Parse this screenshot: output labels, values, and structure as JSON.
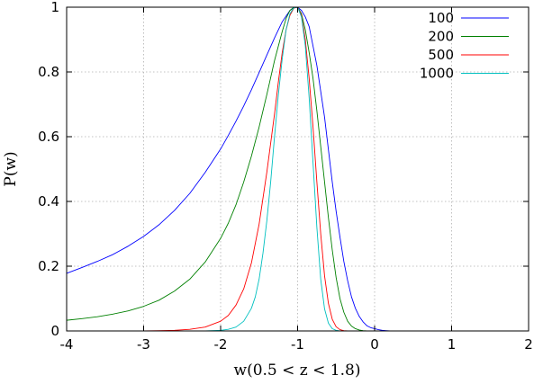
{
  "chart_data": {
    "type": "line",
    "xlabel": "w(0.5 < z < 1.8)",
    "ylabel": "P(w)",
    "xlim": [
      -4,
      2
    ],
    "ylim": [
      0,
      1
    ],
    "grid": true,
    "legend_position": "top-right",
    "x_ticks": [
      "-4",
      "-3",
      "-2",
      "-1",
      "0",
      "1",
      "2"
    ],
    "y_ticks": [
      "0",
      "0.2",
      "0.4",
      "0.6",
      "0.8",
      "1"
    ],
    "series": [
      {
        "name": "100",
        "color": "#0000ff",
        "x": [
          -4.0,
          -3.8,
          -3.6,
          -3.4,
          -3.2,
          -3.0,
          -2.8,
          -2.6,
          -2.4,
          -2.2,
          -2.0,
          -1.9,
          -1.8,
          -1.7,
          -1.6,
          -1.5,
          -1.4,
          -1.3,
          -1.2,
          -1.1,
          -1.05,
          -1.0,
          -0.95,
          -0.9,
          -0.85,
          -0.8,
          -0.75,
          -0.7,
          -0.65,
          -0.6,
          -0.55,
          -0.5,
          -0.45,
          -0.4,
          -0.35,
          -0.3,
          -0.25,
          -0.2,
          -0.15,
          -0.1,
          -0.05,
          0.0,
          0.05,
          0.1,
          0.15,
          0.2
        ],
        "y": [
          0.178,
          0.196,
          0.215,
          0.236,
          0.262,
          0.292,
          0.328,
          0.372,
          0.425,
          0.49,
          0.562,
          0.604,
          0.648,
          0.695,
          0.745,
          0.798,
          0.852,
          0.905,
          0.955,
          0.99,
          0.999,
          1.0,
          0.99,
          0.97,
          0.94,
          0.88,
          0.82,
          0.74,
          0.66,
          0.56,
          0.46,
          0.37,
          0.29,
          0.215,
          0.155,
          0.105,
          0.07,
          0.045,
          0.028,
          0.016,
          0.01,
          0.007,
          0.004,
          0.002,
          0.001,
          0.0
        ]
      },
      {
        "name": "200",
        "color": "#008000",
        "x": [
          -4.0,
          -3.8,
          -3.6,
          -3.4,
          -3.2,
          -3.0,
          -2.8,
          -2.6,
          -2.4,
          -2.2,
          -2.0,
          -1.9,
          -1.8,
          -1.7,
          -1.6,
          -1.5,
          -1.4,
          -1.3,
          -1.2,
          -1.15,
          -1.1,
          -1.05,
          -1.0,
          -0.95,
          -0.9,
          -0.85,
          -0.8,
          -0.75,
          -0.7,
          -0.65,
          -0.6,
          -0.55,
          -0.5,
          -0.45,
          -0.4,
          -0.35,
          -0.3,
          -0.25,
          -0.2,
          -0.15,
          -0.1,
          -0.05,
          0.0
        ],
        "y": [
          0.033,
          0.038,
          0.044,
          0.052,
          0.062,
          0.076,
          0.095,
          0.123,
          0.16,
          0.213,
          0.286,
          0.333,
          0.39,
          0.46,
          0.54,
          0.63,
          0.73,
          0.835,
          0.925,
          0.965,
          0.99,
          0.999,
          1.0,
          0.98,
          0.93,
          0.86,
          0.78,
          0.68,
          0.57,
          0.46,
          0.35,
          0.25,
          0.165,
          0.1,
          0.058,
          0.03,
          0.015,
          0.007,
          0.003,
          0.001,
          0.0,
          0.0,
          0.0
        ]
      },
      {
        "name": "500",
        "color": "#ff0000",
        "x": [
          -3.0,
          -2.8,
          -2.6,
          -2.4,
          -2.2,
          -2.0,
          -1.9,
          -1.8,
          -1.7,
          -1.6,
          -1.5,
          -1.4,
          -1.3,
          -1.25,
          -1.2,
          -1.15,
          -1.1,
          -1.05,
          -1.0,
          -0.95,
          -0.9,
          -0.85,
          -0.8,
          -0.75,
          -0.7,
          -0.65,
          -0.6,
          -0.55,
          -0.5,
          -0.45,
          -0.4,
          -0.35,
          -0.3
        ],
        "y": [
          0.0,
          0.001,
          0.002,
          0.005,
          0.012,
          0.03,
          0.048,
          0.08,
          0.13,
          0.21,
          0.33,
          0.49,
          0.67,
          0.77,
          0.86,
          0.93,
          0.975,
          0.997,
          1.0,
          0.975,
          0.9,
          0.78,
          0.63,
          0.46,
          0.3,
          0.17,
          0.085,
          0.036,
          0.013,
          0.004,
          0.001,
          0.0,
          0.0
        ]
      },
      {
        "name": "1000",
        "color": "#00c0c0",
        "x": [
          -2.2,
          -2.0,
          -1.9,
          -1.8,
          -1.7,
          -1.6,
          -1.55,
          -1.5,
          -1.45,
          -1.4,
          -1.35,
          -1.3,
          -1.25,
          -1.2,
          -1.15,
          -1.1,
          -1.05,
          -1.0,
          -0.95,
          -0.9,
          -0.85,
          -0.8,
          -0.75,
          -0.7,
          -0.65,
          -0.6,
          -0.55,
          -0.5,
          -0.45,
          -0.4
        ],
        "y": [
          0.0,
          0.002,
          0.005,
          0.012,
          0.03,
          0.07,
          0.105,
          0.16,
          0.24,
          0.34,
          0.46,
          0.6,
          0.73,
          0.84,
          0.93,
          0.98,
          0.998,
          1.0,
          0.97,
          0.88,
          0.72,
          0.52,
          0.32,
          0.16,
          0.068,
          0.024,
          0.007,
          0.002,
          0.0,
          0.0
        ]
      }
    ]
  }
}
